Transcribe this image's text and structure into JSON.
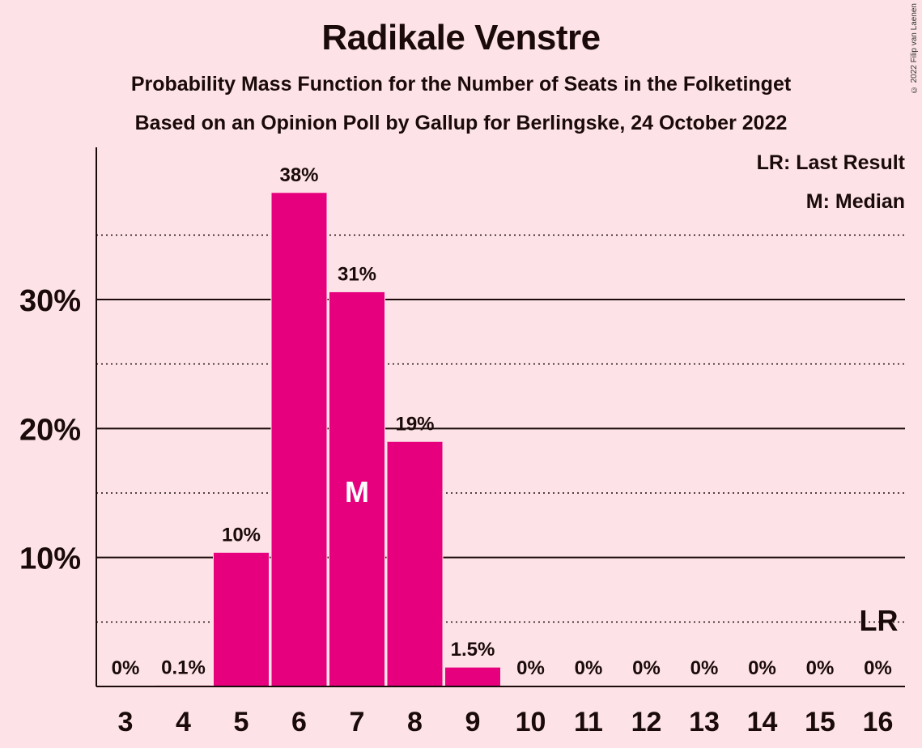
{
  "title": "Radikale Venstre",
  "subtitle1": "Probability Mass Function for the Number of Seats in the Folketinget",
  "subtitle2": "Based on an Opinion Poll by Gallup for Berlingske, 24 October 2022",
  "copyright": "© 2022 Filip van Laenen",
  "legend": {
    "last_result": "LR: Last Result",
    "median": "M: Median"
  },
  "colors": {
    "bar": "#e6007e",
    "background": "#fde3e7",
    "grid": "#1a0a0a"
  },
  "chart_data": {
    "type": "bar",
    "categories": [
      "3",
      "4",
      "5",
      "6",
      "7",
      "8",
      "9",
      "10",
      "11",
      "12",
      "13",
      "14",
      "15",
      "16"
    ],
    "values": [
      0,
      0.1,
      10.4,
      38.3,
      30.6,
      19.0,
      1.5,
      0,
      0,
      0,
      0,
      0,
      0,
      0
    ],
    "data_labels": [
      "0%",
      "0.1%",
      "10%",
      "38%",
      "31%",
      "19%",
      "1.5%",
      "0%",
      "0%",
      "0%",
      "0%",
      "0%",
      "0%",
      "0%"
    ],
    "y_ticks": [
      10,
      20,
      30
    ],
    "y_tick_labels": [
      "10%",
      "20%",
      "30%"
    ],
    "minor_gridlines": [
      5,
      15,
      25,
      35
    ],
    "ylim": [
      0,
      41.8
    ],
    "median_category": "7",
    "median_label": "M",
    "last_result_category": "16",
    "last_result_label": "LR",
    "grid": true,
    "legend_position": "top-right"
  }
}
